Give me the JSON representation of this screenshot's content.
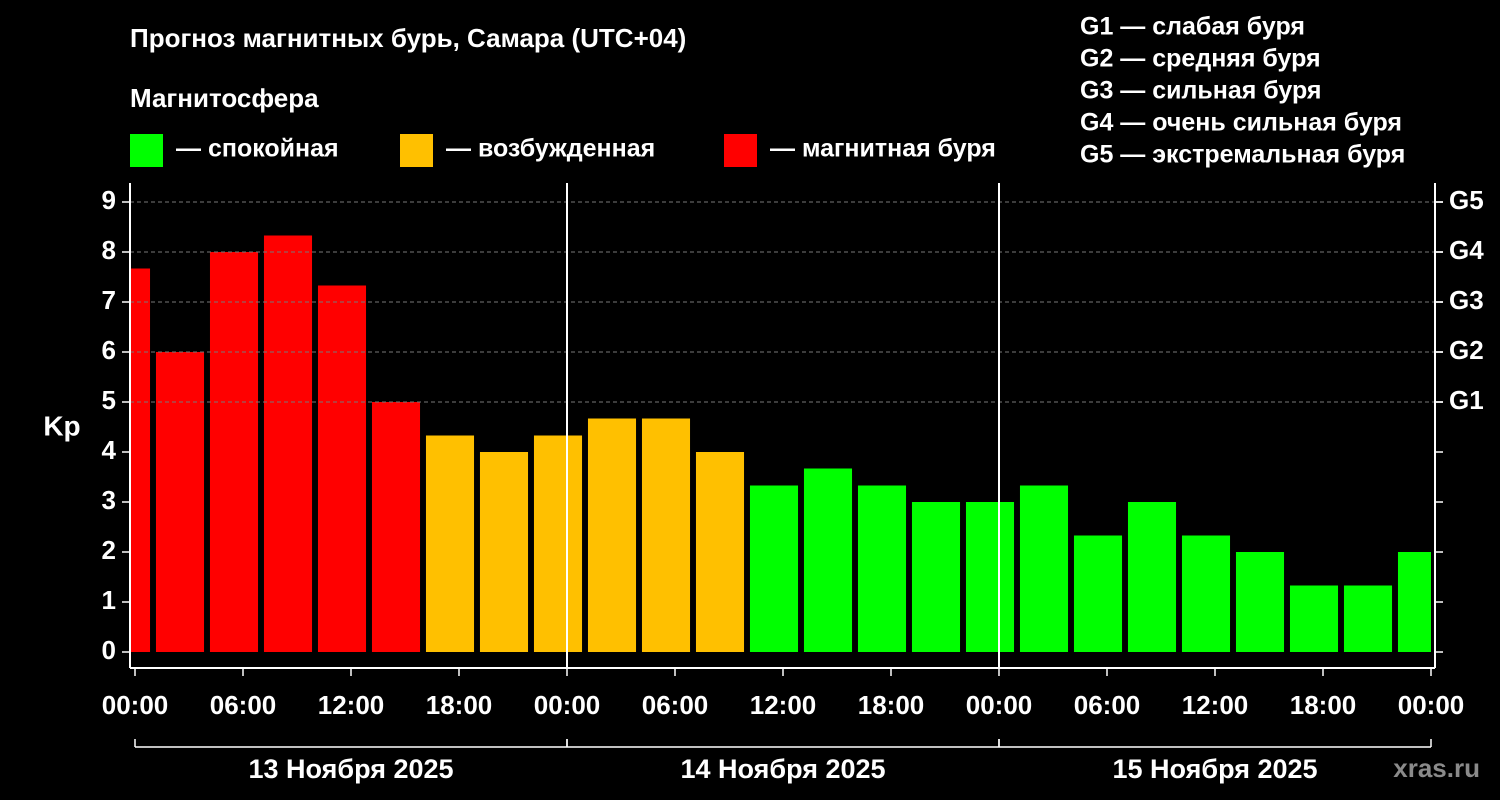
{
  "chart_data": {
    "type": "bar",
    "title": "Прогноз магнитных бурь, Самара (UTC+04)",
    "subtitle": "Магнитосфера",
    "y_label": "Kp",
    "watermark": "xras.ru",
    "scale_legend": [
      "G1 — слабая буря",
      "G2 — средняя буря",
      "G3 — сильная буря",
      "G4 — очень сильная буря",
      "G5 — экстремальная буря"
    ],
    "x": [
      -0.5,
      2.5,
      5.5,
      8.5,
      11.5,
      14.5,
      17.5,
      20.5,
      23.5,
      26.5,
      29.5,
      32.5,
      35.5,
      38.5,
      41.5,
      44.5,
      47.5,
      50.5,
      53.5,
      56.5,
      59.5,
      62.5,
      65.5,
      68.5,
      71.5
    ],
    "bar_width": 2.67,
    "series": [
      {
        "name": "— спокойная",
        "color": "#00ff00",
        "values": [
          null,
          null,
          null,
          null,
          null,
          null,
          null,
          null,
          null,
          null,
          null,
          null,
          3.33,
          3.67,
          3.33,
          3,
          3,
          3.33,
          2.33,
          3,
          2.33,
          2,
          1.33,
          1.33,
          2
        ]
      },
      {
        "name": "— возбужденная",
        "color": "#ffc000",
        "values": [
          null,
          null,
          null,
          null,
          null,
          null,
          4.33,
          4,
          4.33,
          4.67,
          4.67,
          4,
          null,
          null,
          null,
          null,
          null,
          null,
          null,
          null,
          null,
          null,
          null,
          null,
          null
        ]
      },
      {
        "name": "— магнитная буря",
        "color": "#ff0000",
        "values": [
          7.67,
          6,
          8,
          8.33,
          7.33,
          5,
          null,
          null,
          null,
          null,
          null,
          null,
          null,
          null,
          null,
          null,
          null,
          null,
          null,
          null,
          null,
          null,
          null,
          null,
          null
        ]
      }
    ],
    "xlim": [
      0,
      72
    ],
    "xticks": [
      {
        "value": 0,
        "label": "00:00"
      },
      {
        "value": 6,
        "label": "06:00"
      },
      {
        "value": 12,
        "label": "12:00"
      },
      {
        "value": 18,
        "label": "18:00"
      },
      {
        "value": 24,
        "label": "00:00"
      },
      {
        "value": 30,
        "label": "06:00"
      },
      {
        "value": 36,
        "label": "12:00"
      },
      {
        "value": 42,
        "label": "18:00"
      },
      {
        "value": 48,
        "label": "00:00"
      },
      {
        "value": 54,
        "label": "06:00"
      },
      {
        "value": 60,
        "label": "12:00"
      },
      {
        "value": 66,
        "label": "18:00"
      },
      {
        "value": 72,
        "label": "00:00"
      }
    ],
    "days": [
      {
        "label": "13 Ноября 2025",
        "start": 0,
        "end": 24
      },
      {
        "label": "14 Ноября 2025",
        "start": 24,
        "end": 48
      },
      {
        "label": "15 Ноября 2025",
        "start": 48,
        "end": 72
      }
    ],
    "ylim": [
      -0.32,
      9.38
    ],
    "yticks": [
      0,
      1,
      2,
      3,
      4,
      5,
      6,
      7,
      8,
      9
    ],
    "y2lim": [
      -0.32,
      9.38
    ],
    "y2ticks": [
      {
        "value": 5,
        "label": "G1"
      },
      {
        "value": 6,
        "label": "G2"
      },
      {
        "value": 7,
        "label": "G3"
      },
      {
        "value": 8,
        "label": "G4"
      },
      {
        "value": 9,
        "label": "G5"
      }
    ],
    "grid": true
  }
}
